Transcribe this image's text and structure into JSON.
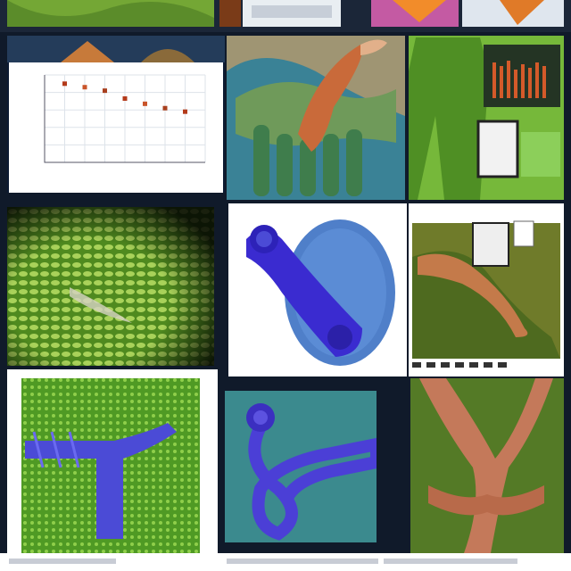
{
  "collage": {
    "panel_labels": {
      "top_right_heading": "",
      "middle_right_heading": "",
      "lower_middle_heading": ""
    },
    "colors": {
      "background": "#0d1626",
      "green": "#5fa02f",
      "blue_violet": "#4b4bd6",
      "teal": "#2f7f86",
      "brown": "#b8744e"
    }
  },
  "chart_data": {
    "type": "scatter",
    "title": "",
    "xlabel": "",
    "ylabel": "",
    "series": [
      {
        "values": [
          {
            "x": 1,
            "y": 9.0
          },
          {
            "x": 2,
            "y": 8.6
          },
          {
            "x": 3,
            "y": 8.2
          },
          {
            "x": 4,
            "y": 7.3
          },
          {
            "x": 5,
            "y": 6.7
          },
          {
            "x": 6,
            "y": 6.2
          },
          {
            "x": 7,
            "y": 5.8
          }
        ]
      }
    ],
    "xlim": [
      0,
      8
    ],
    "ylim": [
      0,
      10
    ],
    "grid": true
  }
}
